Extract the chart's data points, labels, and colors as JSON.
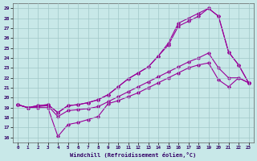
{
  "xlabel": "Windchill (Refroidissement éolien,°C)",
  "xlim": [
    -0.5,
    23.5
  ],
  "ylim": [
    15.5,
    29.5
  ],
  "yticks": [
    16,
    17,
    18,
    19,
    20,
    21,
    22,
    23,
    24,
    25,
    26,
    27,
    28,
    29
  ],
  "xticks": [
    0,
    1,
    2,
    3,
    4,
    5,
    6,
    7,
    8,
    9,
    10,
    11,
    12,
    13,
    14,
    15,
    16,
    17,
    18,
    19,
    20,
    21,
    22,
    23
  ],
  "bg_color": "#c8e8e8",
  "grid_color": "#a0c8c8",
  "line_color": "#990099",
  "line1": [
    19.3,
    19.0,
    19.0,
    19.0,
    16.1,
    17.3,
    17.5,
    17.8,
    18.1,
    19.4,
    19.7,
    20.1,
    20.5,
    21.0,
    21.5,
    22.0,
    22.5,
    23.0,
    23.3,
    23.5,
    21.8,
    21.1,
    22.0,
    21.5
  ],
  "line2": [
    19.3,
    19.0,
    19.1,
    19.2,
    18.1,
    18.7,
    18.8,
    18.9,
    19.1,
    19.6,
    20.1,
    20.6,
    21.1,
    21.6,
    22.1,
    22.6,
    23.1,
    23.6,
    24.0,
    24.5,
    23.0,
    22.0,
    22.0,
    21.5
  ],
  "line3": [
    19.3,
    19.0,
    19.2,
    19.3,
    18.5,
    19.2,
    19.3,
    19.5,
    19.8,
    20.3,
    21.1,
    21.9,
    22.5,
    23.1,
    24.2,
    25.3,
    27.2,
    27.7,
    28.2,
    29.0,
    28.2,
    24.6,
    23.3,
    21.5
  ],
  "line4": [
    19.3,
    19.0,
    19.2,
    19.3,
    18.5,
    19.2,
    19.3,
    19.5,
    19.8,
    20.3,
    21.1,
    21.9,
    22.5,
    23.1,
    24.2,
    25.5,
    27.5,
    28.0,
    28.5,
    29.0,
    28.2,
    24.6,
    23.3,
    21.5
  ]
}
